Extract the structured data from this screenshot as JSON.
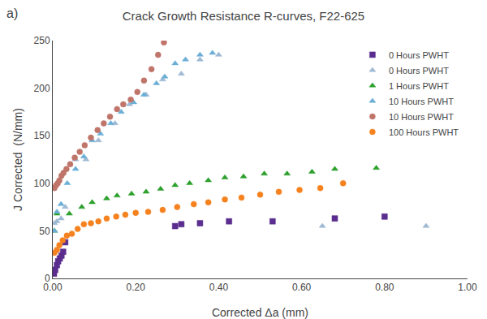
{
  "chart_data": {
    "type": "scatter",
    "title": "Crack Growth Resistance R-curves, F22-625",
    "x_label": "Corrected Δa (mm)",
    "y_label": "J Corrected  (N/mm)",
    "annotations": [
      "a)"
    ],
    "xlim": [
      0,
      1.0
    ],
    "ylim": [
      0,
      250
    ],
    "xticks": [
      {
        "value": 0.0,
        "label": "0.00"
      },
      {
        "value": 0.2,
        "label": "0.20"
      },
      {
        "value": 0.4,
        "label": "0.40"
      },
      {
        "value": 0.6,
        "label": "0.60"
      },
      {
        "value": 0.8,
        "label": "0.80"
      },
      {
        "value": 1.0,
        "label": "1.00"
      }
    ],
    "yticks": [
      0,
      50,
      100,
      150,
      200,
      250
    ],
    "grid": false,
    "legend": "upper right",
    "series": [
      {
        "name": "0 Hours PWHT",
        "color": "#5b2d8e",
        "marker": "square",
        "x": [
          0.003,
          0.006,
          0.01,
          0.013,
          0.017,
          0.021,
          0.025,
          0.03,
          0.295,
          0.31,
          0.355,
          0.425,
          0.53,
          0.68,
          0.8
        ],
        "y": [
          5,
          9,
          14,
          18,
          21,
          24,
          28,
          38,
          55,
          57,
          58,
          60,
          60,
          63,
          65
        ]
      },
      {
        "name": "0 Hours PWHT",
        "color": "#9eb9d4",
        "marker": "triangle-up",
        "x": [
          0.004,
          0.01,
          0.02,
          0.03,
          0.055,
          0.08,
          0.11,
          0.15,
          0.185,
          0.225,
          0.265,
          0.31,
          0.355,
          0.4,
          0.65,
          0.9
        ],
        "y": [
          58,
          60,
          63,
          75,
          125,
          125,
          145,
          163,
          183,
          193,
          209,
          215,
          230,
          235,
          55,
          55
        ]
      },
      {
        "name": "1 Hours PWHT",
        "color": "#2ca02c",
        "marker": "triangle-up",
        "x": [
          0.004,
          0.01,
          0.04,
          0.07,
          0.095,
          0.13,
          0.155,
          0.19,
          0.225,
          0.26,
          0.295,
          0.33,
          0.375,
          0.415,
          0.46,
          0.51,
          0.565,
          0.625,
          0.68,
          0.78
        ],
        "y": [
          50,
          68,
          68,
          75,
          80,
          84,
          87,
          89,
          91,
          94,
          98,
          100,
          103,
          106,
          107,
          110,
          110,
          112,
          115,
          116
        ]
      },
      {
        "name": "10 Hours PWHT",
        "color": "#6baed6",
        "marker": "triangle-up",
        "x": [
          0.004,
          0.01,
          0.02,
          0.035,
          0.055,
          0.075,
          0.095,
          0.115,
          0.14,
          0.165,
          0.195,
          0.22,
          0.25,
          0.27,
          0.295,
          0.32,
          0.355,
          0.385
        ],
        "y": [
          50,
          70,
          78,
          100,
          115,
          128,
          145,
          152,
          163,
          175,
          185,
          193,
          205,
          212,
          226,
          230,
          235,
          237
        ]
      },
      {
        "name": "10 Hours PWHT",
        "color": "#c0756a",
        "marker": "circle",
        "x": [
          0.004,
          0.008,
          0.012,
          0.016,
          0.021,
          0.026,
          0.033,
          0.042,
          0.053,
          0.065,
          0.077,
          0.092,
          0.108,
          0.123,
          0.138,
          0.155,
          0.17,
          0.188,
          0.204,
          0.22,
          0.238,
          0.254,
          0.268
        ],
        "y": [
          95,
          98,
          100,
          103,
          108,
          111,
          115,
          120,
          127,
          133,
          140,
          148,
          156,
          163,
          170,
          178,
          183,
          188,
          196,
          208,
          220,
          235,
          248
        ]
      },
      {
        "name": "100 Hours PWHT",
        "color": "#f5821f",
        "marker": "circle",
        "x": [
          0.004,
          0.01,
          0.016,
          0.024,
          0.034,
          0.046,
          0.06,
          0.075,
          0.092,
          0.11,
          0.13,
          0.153,
          0.175,
          0.2,
          0.23,
          0.265,
          0.3,
          0.34,
          0.375,
          0.415,
          0.455,
          0.5,
          0.545,
          0.595,
          0.645,
          0.7
        ],
        "y": [
          27,
          30,
          35,
          40,
          45,
          47,
          52,
          57,
          58,
          60,
          63,
          65,
          67,
          69,
          70,
          72,
          75,
          78,
          80,
          83,
          85,
          88,
          91,
          93,
          95,
          100
        ]
      }
    ]
  }
}
